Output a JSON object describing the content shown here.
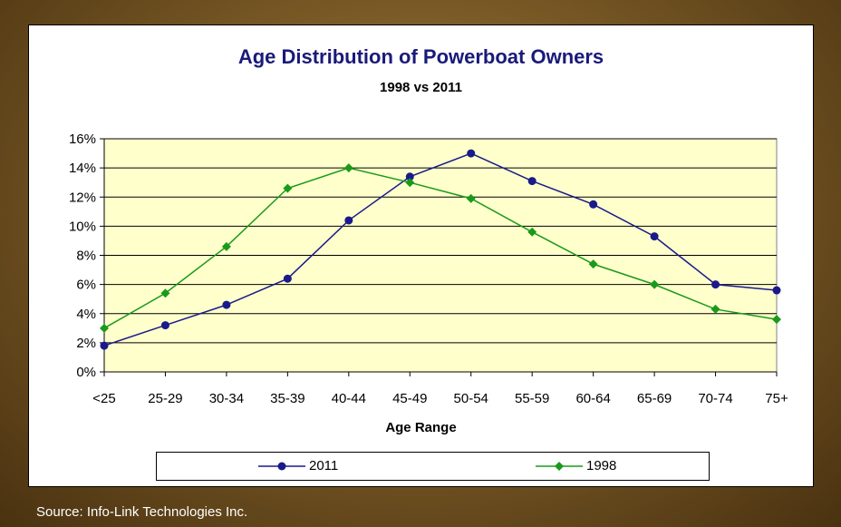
{
  "chart_data": {
    "type": "line",
    "title": "Age Distribution of Powerboat Owners",
    "subtitle": "1998 vs 2011",
    "xlabel": "Age Range",
    "ylabel": "",
    "categories": [
      "<25",
      "25-29",
      "30-34",
      "35-39",
      "40-44",
      "45-49",
      "50-54",
      "55-59",
      "60-64",
      "65-69",
      "70-74",
      "75+"
    ],
    "ylim": [
      0,
      16
    ],
    "yticks": [
      "0%",
      "2%",
      "4%",
      "6%",
      "8%",
      "10%",
      "12%",
      "14%",
      "16%"
    ],
    "grid": true,
    "legend_position": "bottom",
    "series": [
      {
        "name": "2011",
        "color": "#1a1a8a",
        "marker": "circle",
        "values": [
          1.8,
          3.2,
          4.6,
          6.4,
          10.4,
          13.4,
          15.0,
          13.1,
          11.5,
          9.3,
          6.0,
          5.6
        ]
      },
      {
        "name": "1998",
        "color": "#1a9a1a",
        "marker": "diamond",
        "values": [
          3.0,
          5.4,
          8.6,
          12.6,
          14.0,
          13.0,
          11.9,
          9.6,
          7.4,
          6.0,
          4.3,
          3.6
        ]
      }
    ],
    "plot_background": "#ffffcc"
  },
  "footer": {
    "source": "Source: Info-Link Technologies Inc."
  }
}
